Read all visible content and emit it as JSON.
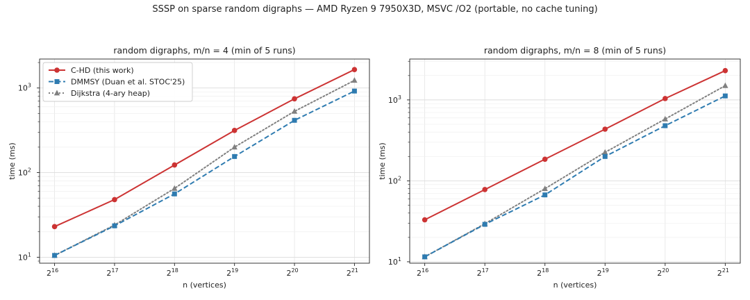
{
  "figure": {
    "suptitle": "SSSP on sparse random digraphs — AMD Ryzen 9 7950X3D, MSVC /O2 (portable, no cache tuning)"
  },
  "chart_data": [
    {
      "type": "line",
      "title": "random digraphs, m/n = 4  (min of 5 runs)",
      "xlabel": "n (vertices)",
      "ylabel": "time (ms)",
      "xscale": "log2",
      "yscale": "log",
      "x": [
        16,
        17,
        18,
        19,
        20,
        21
      ],
      "xtick_base": "2",
      "ylim": [
        8.5,
        2200
      ],
      "yticks": [
        {
          "exp": "1",
          "value": 10
        },
        {
          "exp": "2",
          "value": 100
        },
        {
          "exp": "3",
          "value": 1000
        }
      ],
      "grid": true,
      "legend": "top-left",
      "series": [
        {
          "name": "C-HD (this work)",
          "color": "#cc3333",
          "marker": "circle",
          "dash": "solid",
          "values": [
            23,
            48,
            123,
            315,
            745,
            1650
          ]
        },
        {
          "name": "DMMSY (Duan et al. STOC'25)",
          "color": "#2e7bb0",
          "marker": "square",
          "dash": "dashed",
          "values": [
            10.5,
            23.5,
            56,
            155,
            415,
            920
          ]
        },
        {
          "name": "Dijkstra (4-ary heap)",
          "color": "#808080",
          "marker": "triangle",
          "dash": "dotted",
          "values": [
            10.5,
            24,
            65,
            200,
            530,
            1230
          ]
        }
      ]
    },
    {
      "type": "line",
      "title": "random digraphs, m/n = 8  (min of 5 runs)",
      "xlabel": "n (vertices)",
      "ylabel": "time (ms)",
      "xscale": "log2",
      "yscale": "log",
      "x": [
        16,
        17,
        18,
        19,
        20,
        21
      ],
      "xtick_base": "2",
      "ylim": [
        9.6,
        3200
      ],
      "yticks": [
        {
          "exp": "1",
          "value": 10
        },
        {
          "exp": "2",
          "value": 100
        },
        {
          "exp": "3",
          "value": 1000
        }
      ],
      "grid": true,
      "legend": "none",
      "series": [
        {
          "name": "C-HD (this work)",
          "color": "#cc3333",
          "marker": "circle",
          "dash": "solid",
          "values": [
            33,
            78,
            185,
            435,
            1040,
            2300
          ]
        },
        {
          "name": "DMMSY (Duan et al. STOC'25)",
          "color": "#2e7bb0",
          "marker": "square",
          "dash": "dashed",
          "values": [
            11.5,
            29,
            67,
            200,
            480,
            1120
          ]
        },
        {
          "name": "Dijkstra (4-ary heap)",
          "color": "#808080",
          "marker": "triangle",
          "dash": "dotted",
          "values": [
            11.5,
            29.5,
            80,
            225,
            580,
            1500
          ]
        }
      ]
    }
  ]
}
